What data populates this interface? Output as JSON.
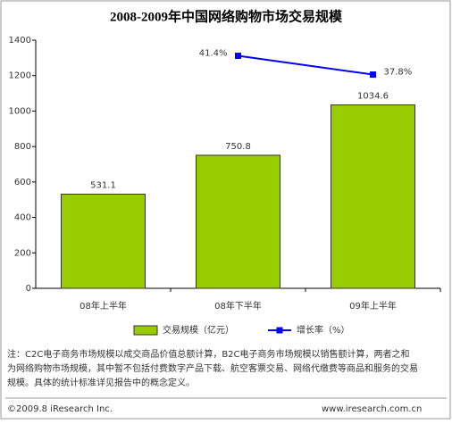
{
  "chart_data": {
    "type": "bar-line",
    "title": "2008-2009年中国网络购物市场交易规模",
    "categories": [
      "08年上半年",
      "08年下半年",
      "09年上半年"
    ],
    "series": [
      {
        "name": "交易规模（亿元）",
        "type": "bar",
        "color": "#99cc00",
        "values": [
          531.1,
          750.8,
          1034.6
        ]
      },
      {
        "name": "增长率（%）",
        "type": "line",
        "axis": "y2",
        "color": "#0000ff",
        "values": [
          null,
          41.4,
          37.8
        ],
        "value_labels": [
          null,
          "41.4%",
          "37.8%"
        ]
      }
    ],
    "ylim": [
      0,
      1400
    ],
    "yticks": [
      0,
      200,
      400,
      600,
      800,
      1000,
      1200,
      1400
    ],
    "y2lim": [
      -3.2,
      44.4
    ],
    "notes": [
      "注：C2C电子商务市场规模以成交商品价值总额计算，B2C电子商务市场规模以销售额计算，两者之和",
      "为网络购物市场规模，其中暂不包括付费数字产品下载、航空客票交易、网络代缴费等商品和服务的交易",
      "规模。具体的统计标准详见报告中的概念定义。"
    ],
    "copyright": "©2009.8 iResearch Inc.",
    "website": "www.iresearch.com.cn"
  }
}
